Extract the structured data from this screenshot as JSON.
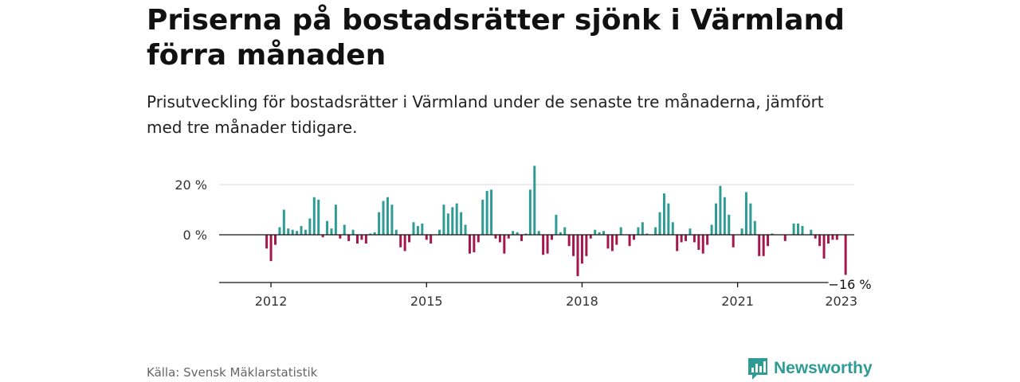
{
  "header": {
    "title": "Priserna på bostadsrätter sjönk i Värmland förra månaden",
    "subtitle": "Prisutveckling för bostadsrätter i Värmland under de senaste tre månaderna, jämfört med tre månader tidigare."
  },
  "footer": {
    "source": "Källa: Svensk Mäklarstatistik",
    "brand": "Newsworthy"
  },
  "colors": {
    "positive": "#2e9c94",
    "negative": "#a3174a",
    "grid": "#d9d9d9",
    "axis": "#111111",
    "brand": "#2e9c94"
  },
  "chart_data": {
    "type": "bar",
    "x_start": "2011-01",
    "x_end": "2023-04",
    "y_range": [
      -20,
      30
    ],
    "y_ticks": [
      {
        "value": 0,
        "label": "0 %"
      },
      {
        "value": 20,
        "label": "20 %"
      }
    ],
    "x_ticks": [
      {
        "label": "2012",
        "date": "2012-01"
      },
      {
        "label": "2015",
        "date": "2015-01"
      },
      {
        "label": "2018",
        "date": "2018-01"
      },
      {
        "label": "2021",
        "date": "2021-01"
      },
      {
        "label": "2023",
        "date": "2023-01"
      }
    ],
    "annotation": {
      "label": "−16 %",
      "date": "2023-03",
      "value": -16
    },
    "grid": "horizontal",
    "series": [
      {
        "date": "2011-01",
        "value": 0
      },
      {
        "date": "2011-02",
        "value": 0
      },
      {
        "date": "2011-03",
        "value": 0
      },
      {
        "date": "2011-04",
        "value": 0
      },
      {
        "date": "2011-05",
        "value": 0
      },
      {
        "date": "2011-06",
        "value": 0
      },
      {
        "date": "2011-07",
        "value": 0
      },
      {
        "date": "2011-08",
        "value": 0
      },
      {
        "date": "2011-09",
        "value": 0
      },
      {
        "date": "2011-10",
        "value": 0
      },
      {
        "date": "2011-11",
        "value": 0
      },
      {
        "date": "2011-12",
        "value": -5.5
      },
      {
        "date": "2012-01",
        "value": -10.5
      },
      {
        "date": "2012-02",
        "value": -4
      },
      {
        "date": "2012-03",
        "value": 3
      },
      {
        "date": "2012-04",
        "value": 10
      },
      {
        "date": "2012-05",
        "value": 2.5
      },
      {
        "date": "2012-06",
        "value": 2
      },
      {
        "date": "2012-07",
        "value": 1.5
      },
      {
        "date": "2012-08",
        "value": 3.5
      },
      {
        "date": "2012-09",
        "value": 2
      },
      {
        "date": "2012-10",
        "value": 6.5
      },
      {
        "date": "2012-11",
        "value": 15
      },
      {
        "date": "2012-12",
        "value": 14
      },
      {
        "date": "2013-01",
        "value": -1
      },
      {
        "date": "2013-02",
        "value": 5.5
      },
      {
        "date": "2013-03",
        "value": 2.5
      },
      {
        "date": "2013-04",
        "value": 12
      },
      {
        "date": "2013-05",
        "value": -1.5
      },
      {
        "date": "2013-06",
        "value": 4
      },
      {
        "date": "2013-07",
        "value": -2.5
      },
      {
        "date": "2013-08",
        "value": 2
      },
      {
        "date": "2013-09",
        "value": -3.5
      },
      {
        "date": "2013-10",
        "value": -2
      },
      {
        "date": "2013-11",
        "value": -3.5
      },
      {
        "date": "2013-12",
        "value": 0.5
      },
      {
        "date": "2014-01",
        "value": 1
      },
      {
        "date": "2014-02",
        "value": 9
      },
      {
        "date": "2014-03",
        "value": 13.5
      },
      {
        "date": "2014-04",
        "value": 15
      },
      {
        "date": "2014-05",
        "value": 12
      },
      {
        "date": "2014-06",
        "value": 2
      },
      {
        "date": "2014-07",
        "value": -5
      },
      {
        "date": "2014-08",
        "value": -6.5
      },
      {
        "date": "2014-09",
        "value": -3
      },
      {
        "date": "2014-10",
        "value": 5
      },
      {
        "date": "2014-11",
        "value": 3.5
      },
      {
        "date": "2014-12",
        "value": 4.5
      },
      {
        "date": "2015-01",
        "value": -2
      },
      {
        "date": "2015-02",
        "value": -3.5
      },
      {
        "date": "2015-03",
        "value": 0
      },
      {
        "date": "2015-04",
        "value": 2
      },
      {
        "date": "2015-05",
        "value": 12
      },
      {
        "date": "2015-06",
        "value": 8.5
      },
      {
        "date": "2015-07",
        "value": 11
      },
      {
        "date": "2015-08",
        "value": 12.5
      },
      {
        "date": "2015-09",
        "value": 9
      },
      {
        "date": "2015-10",
        "value": 4
      },
      {
        "date": "2015-11",
        "value": -7.5
      },
      {
        "date": "2015-12",
        "value": -7
      },
      {
        "date": "2016-01",
        "value": -3
      },
      {
        "date": "2016-02",
        "value": 14
      },
      {
        "date": "2016-03",
        "value": 17.5
      },
      {
        "date": "2016-04",
        "value": 18
      },
      {
        "date": "2016-05",
        "value": -1.5
      },
      {
        "date": "2016-06",
        "value": -3
      },
      {
        "date": "2016-07",
        "value": -7.5
      },
      {
        "date": "2016-08",
        "value": -1.5
      },
      {
        "date": "2016-09",
        "value": 1.5
      },
      {
        "date": "2016-10",
        "value": 1
      },
      {
        "date": "2016-11",
        "value": -2.5
      },
      {
        "date": "2016-12",
        "value": 0.5
      },
      {
        "date": "2017-01",
        "value": 18
      },
      {
        "date": "2017-02",
        "value": 27.5
      },
      {
        "date": "2017-03",
        "value": 1.5
      },
      {
        "date": "2017-04",
        "value": -8
      },
      {
        "date": "2017-05",
        "value": -7.5
      },
      {
        "date": "2017-06",
        "value": -2
      },
      {
        "date": "2017-07",
        "value": 8
      },
      {
        "date": "2017-08",
        "value": 1
      },
      {
        "date": "2017-09",
        "value": 3
      },
      {
        "date": "2017-10",
        "value": -4.5
      },
      {
        "date": "2017-11",
        "value": -8.5
      },
      {
        "date": "2017-12",
        "value": -16.5
      },
      {
        "date": "2018-01",
        "value": -11.5
      },
      {
        "date": "2018-02",
        "value": -8.5
      },
      {
        "date": "2018-03",
        "value": -1.5
      },
      {
        "date": "2018-04",
        "value": 2
      },
      {
        "date": "2018-05",
        "value": 1
      },
      {
        "date": "2018-06",
        "value": 1.5
      },
      {
        "date": "2018-07",
        "value": -5.5
      },
      {
        "date": "2018-08",
        "value": -6.5
      },
      {
        "date": "2018-09",
        "value": -4
      },
      {
        "date": "2018-10",
        "value": 3
      },
      {
        "date": "2018-11",
        "value": 0
      },
      {
        "date": "2018-12",
        "value": -4.5
      },
      {
        "date": "2019-01",
        "value": -2
      },
      {
        "date": "2019-02",
        "value": 3
      },
      {
        "date": "2019-03",
        "value": 5
      },
      {
        "date": "2019-04",
        "value": 0.5
      },
      {
        "date": "2019-05",
        "value": 0
      },
      {
        "date": "2019-06",
        "value": 3
      },
      {
        "date": "2019-07",
        "value": 9
      },
      {
        "date": "2019-08",
        "value": 16.5
      },
      {
        "date": "2019-09",
        "value": 12.5
      },
      {
        "date": "2019-10",
        "value": 5
      },
      {
        "date": "2019-11",
        "value": -6.5
      },
      {
        "date": "2019-12",
        "value": -3
      },
      {
        "date": "2020-01",
        "value": -2.5
      },
      {
        "date": "2020-02",
        "value": 2.5
      },
      {
        "date": "2020-03",
        "value": -3
      },
      {
        "date": "2020-04",
        "value": -6
      },
      {
        "date": "2020-05",
        "value": -7.5
      },
      {
        "date": "2020-06",
        "value": -4
      },
      {
        "date": "2020-07",
        "value": 4
      },
      {
        "date": "2020-08",
        "value": 12.5
      },
      {
        "date": "2020-09",
        "value": 19.5
      },
      {
        "date": "2020-10",
        "value": 15
      },
      {
        "date": "2020-11",
        "value": 8
      },
      {
        "date": "2020-12",
        "value": -5
      },
      {
        "date": "2021-01",
        "value": 0
      },
      {
        "date": "2021-02",
        "value": 2.5
      },
      {
        "date": "2021-03",
        "value": 17
      },
      {
        "date": "2021-04",
        "value": 12.5
      },
      {
        "date": "2021-05",
        "value": 5.5
      },
      {
        "date": "2021-06",
        "value": -8.5
      },
      {
        "date": "2021-07",
        "value": -8.5
      },
      {
        "date": "2021-08",
        "value": -4.5
      },
      {
        "date": "2021-09",
        "value": 0.5
      },
      {
        "date": "2021-10",
        "value": 0
      },
      {
        "date": "2021-11",
        "value": 0
      },
      {
        "date": "2021-12",
        "value": -2.5
      },
      {
        "date": "2022-01",
        "value": 0
      },
      {
        "date": "2022-02",
        "value": 4.5
      },
      {
        "date": "2022-03",
        "value": 4.5
      },
      {
        "date": "2022-04",
        "value": 3.5
      },
      {
        "date": "2022-05",
        "value": 0
      },
      {
        "date": "2022-06",
        "value": 2
      },
      {
        "date": "2022-07",
        "value": -1.5
      },
      {
        "date": "2022-08",
        "value": -4.5
      },
      {
        "date": "2022-09",
        "value": -9.5
      },
      {
        "date": "2022-10",
        "value": -3.5
      },
      {
        "date": "2022-11",
        "value": -2
      },
      {
        "date": "2022-12",
        "value": -2
      },
      {
        "date": "2023-01",
        "value": 0
      },
      {
        "date": "2023-02",
        "value": -16
      }
    ]
  }
}
